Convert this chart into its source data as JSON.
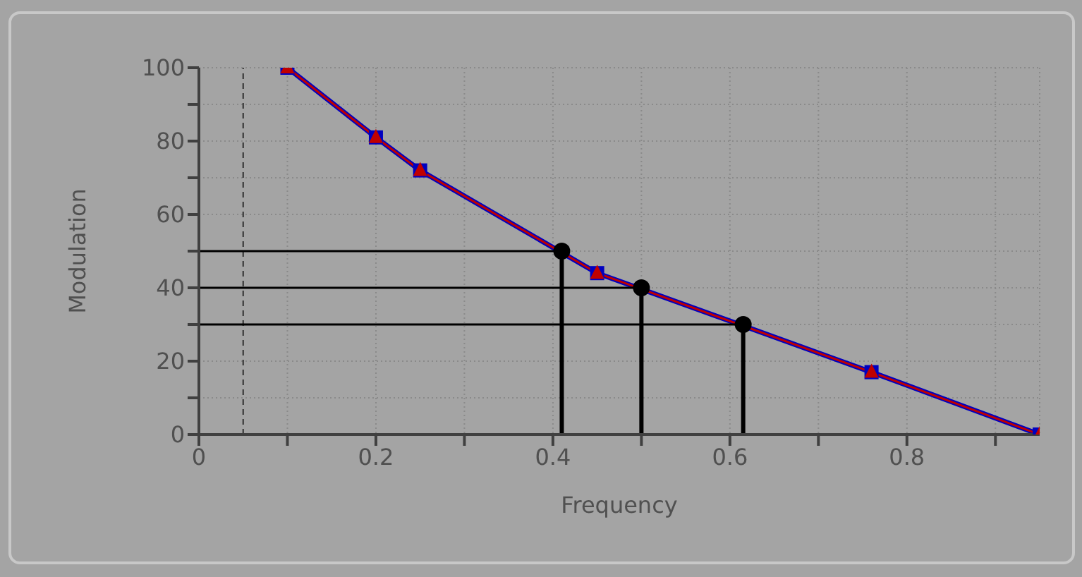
{
  "chart_data": {
    "type": "line",
    "xlabel": "Frequency",
    "ylabel": "Modulation",
    "xlim": [
      0,
      0.95
    ],
    "ylim": [
      0,
      100
    ],
    "xticks": [
      0,
      {
        "value": 0.1,
        "label": null
      },
      0.2,
      {
        "value": 0.3,
        "label": null
      },
      0.4,
      {
        "value": 0.5,
        "label": null
      },
      0.6,
      {
        "value": 0.7,
        "label": null
      },
      0.8,
      {
        "value": 0.9,
        "label": null
      }
    ],
    "yticks": [
      0,
      {
        "value": 10,
        "label": null
      },
      20,
      {
        "value": 30,
        "label": null
      },
      40,
      {
        "value": 50,
        "label": null
      },
      60,
      {
        "value": 70,
        "label": null
      },
      80,
      {
        "value": 90,
        "label": null
      },
      100
    ],
    "grid": true,
    "ref_lines": [
      {
        "axis": "x",
        "value": 0.05,
        "line_style": "dashed",
        "color": "#303030"
      }
    ],
    "series": [
      {
        "type": "line",
        "color": "#0000c0",
        "marker": "square",
        "x": [
          0.1,
          0.2,
          0.25,
          0.45,
          0.76,
          0.95
        ],
        "values": [
          100,
          81,
          72,
          44,
          17,
          0
        ]
      },
      {
        "type": "line",
        "color": "#c00000",
        "marker": "triangle",
        "x": [
          0.1,
          0.2,
          0.25,
          0.45,
          0.76,
          0.95
        ],
        "values": [
          100,
          81,
          72,
          44,
          17,
          0
        ]
      },
      {
        "type": "lollipop",
        "color": "#000000",
        "marker": "circle",
        "x": [
          0.41,
          0.5,
          0.615
        ],
        "values": [
          50,
          40,
          30
        ],
        "xerrors": [
          [
            0,
            0.41
          ],
          [
            0,
            0.5
          ],
          [
            0,
            0.615
          ]
        ]
      }
    ]
  }
}
